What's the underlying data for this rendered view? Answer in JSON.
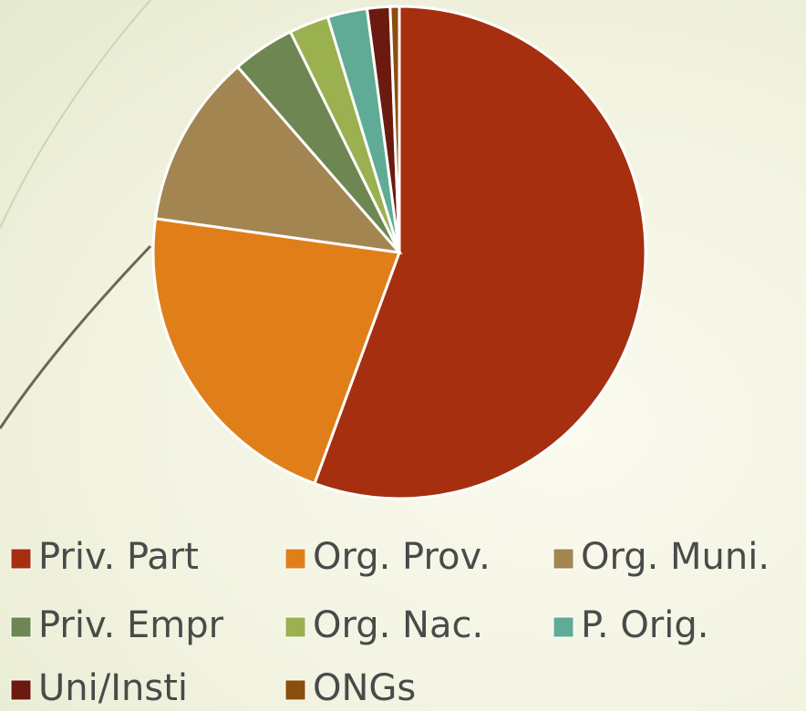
{
  "chart_data": {
    "type": "pie",
    "categories": [
      "Priv. Part",
      "Org. Prov.",
      "Org. Muni.",
      "Priv. Empr",
      "Org. Nac.",
      "P. Orig.",
      "Uni/Insti",
      "ONGs"
    ],
    "values": [
      55.6,
      21.6,
      11.4,
      4.1,
      2.6,
      2.6,
      1.5,
      0.6
    ],
    "colors": [
      "#a52f0f",
      "#e07f1a",
      "#a38552",
      "#6e8651",
      "#9bb04e",
      "#5fab95",
      "#6b1a10",
      "#8a4e0e"
    ],
    "legend": "bottom"
  }
}
